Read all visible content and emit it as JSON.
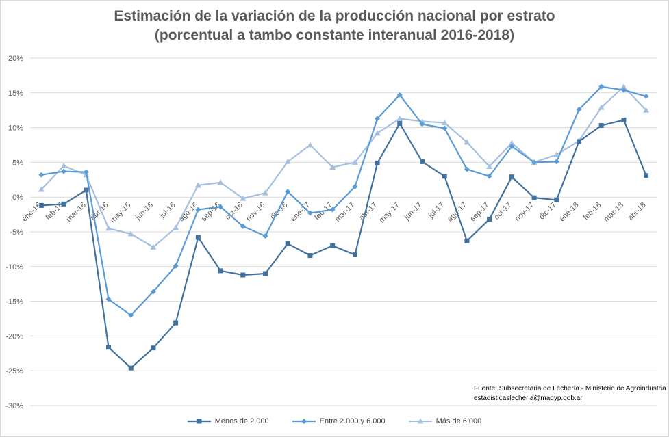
{
  "chart_data": {
    "type": "line",
    "title": "Estimación de la variación de la producción nacional por estrato",
    "subtitle": "(porcentual a tambo constante interanual 2016-2018)",
    "categories": [
      "ene-16",
      "feb-16",
      "mar-16",
      "abr-16",
      "may-16",
      "jun-16",
      "jul-16",
      "ago-16",
      "sep-16",
      "oct-16",
      "nov-16",
      "dic-16",
      "ene-17",
      "feb-17",
      "mar-17",
      "abr-17",
      "may-17",
      "jun-17",
      "jul-17",
      "ago-17",
      "sep-17",
      "oct-17",
      "nov-17",
      "dic-17",
      "ene-18",
      "feb-18",
      "mar-18",
      "abr-18"
    ],
    "series": [
      {
        "name": "Menos de 2.000",
        "color": "#41719c",
        "marker": "square",
        "values": [
          -1.2,
          -1.0,
          1.0,
          -21.6,
          -24.6,
          -21.7,
          -18.1,
          -5.8,
          -10.6,
          -11.2,
          -11.0,
          -6.7,
          -8.4,
          -7.0,
          -8.3,
          4.9,
          10.6,
          5.1,
          3.0,
          -6.3,
          -3.2,
          2.9,
          -0.1,
          -0.4,
          8.0,
          10.3,
          11.1,
          3.1
        ]
      },
      {
        "name": "Entre 2.000 y 6.000",
        "color": "#5b9bd5",
        "marker": "diamond",
        "values": [
          3.2,
          3.7,
          3.6,
          -14.7,
          -17.0,
          -13.6,
          -9.9,
          -1.8,
          -1.4,
          -4.2,
          -5.6,
          0.8,
          -2.3,
          -1.8,
          1.5,
          11.3,
          14.7,
          10.5,
          9.9,
          4.0,
          3.0,
          7.3,
          5.0,
          5.1,
          12.6,
          15.9,
          15.4,
          14.5
        ]
      },
      {
        "name": "Más de 6.000",
        "color": "#a5c0de",
        "marker": "triangle",
        "values": [
          1.1,
          4.5,
          3.2,
          -4.5,
          -5.3,
          -7.2,
          -4.4,
          1.7,
          2.1,
          -0.2,
          0.6,
          5.1,
          7.5,
          4.3,
          5.0,
          9.2,
          11.3,
          10.9,
          10.7,
          7.9,
          4.4,
          7.8,
          5.0,
          6.1,
          8.1,
          12.9,
          15.9,
          12.5
        ]
      }
    ],
    "ylim": [
      -30,
      20
    ],
    "y_ticks": [
      20,
      15,
      10,
      5,
      0,
      -5,
      -10,
      -15,
      -20,
      -25,
      -30
    ],
    "y_tick_suffix": "%",
    "xlabel": "",
    "ylabel": "",
    "grid": true,
    "legend": "bottom"
  },
  "source": {
    "line1": "Fuente: Subsecretaria de Lechería - Ministerio de Agroindustria",
    "line2": "estadisticaslecheria@magyp.gob.ar"
  }
}
